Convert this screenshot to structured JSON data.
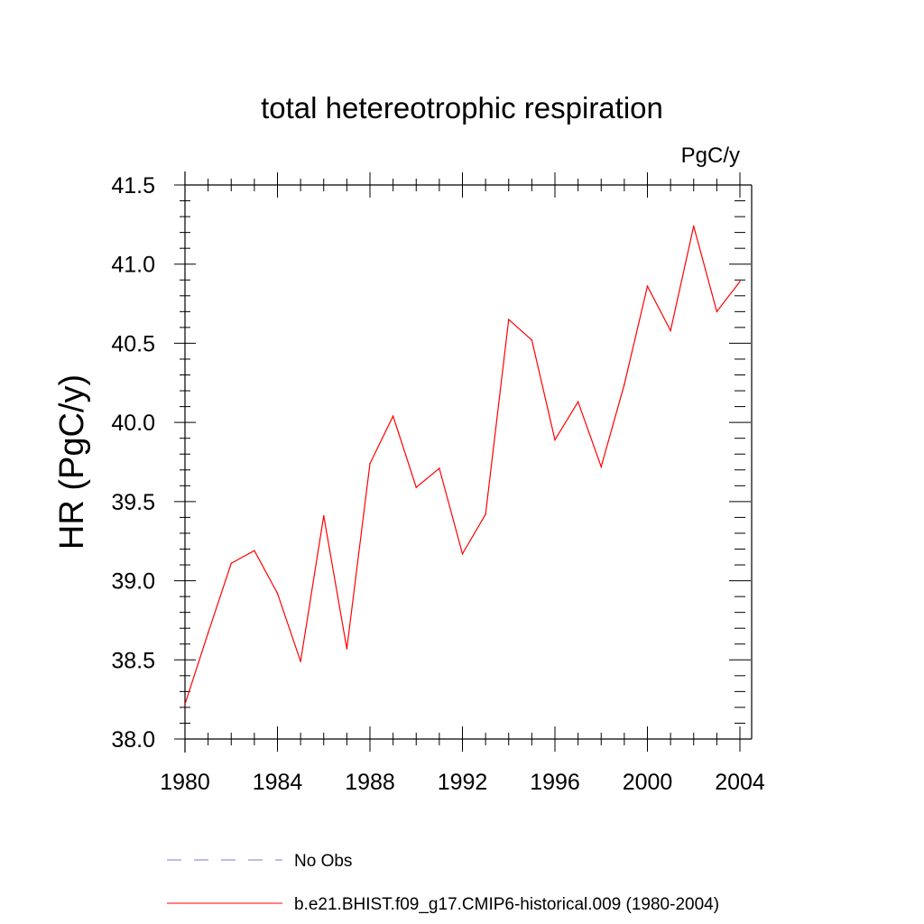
{
  "chart_data": {
    "type": "line",
    "title": "total hetereotrophic respiration",
    "units": "PgC/y",
    "ylabel": "HR  (PgC/y)",
    "xlabel": "",
    "xlim": [
      1980,
      2004
    ],
    "ylim": [
      38.0,
      41.5
    ],
    "x_ticks": [
      1980,
      1984,
      1988,
      1992,
      1996,
      2000,
      2004
    ],
    "x_tick_labels": [
      "1980",
      "1984",
      "1988",
      "1992",
      "1996",
      "2000",
      "2004"
    ],
    "y_ticks": [
      38.0,
      38.5,
      39.0,
      39.5,
      40.0,
      40.5,
      41.0,
      41.5
    ],
    "y_tick_labels": [
      "38.0",
      "38.5",
      "39.0",
      "39.5",
      "40.0",
      "40.5",
      "41.0",
      "41.5"
    ],
    "x_minor_step": 1,
    "y_minor_step": 0.1,
    "grid": false,
    "legend_position": "bottom",
    "series": [
      {
        "name": "b.e21.BHIST.f09_g17.CMIP6-historical.009 (1980-2004)",
        "color": "#ff0000",
        "style": "solid",
        "x": [
          1980,
          1981,
          1982,
          1983,
          1984,
          1985,
          1986,
          1987,
          1988,
          1989,
          1990,
          1991,
          1992,
          1993,
          1994,
          1995,
          1996,
          1997,
          1998,
          1999,
          2000,
          2001,
          2002,
          2003,
          2004
        ],
        "values": [
          38.22,
          38.67,
          39.11,
          39.19,
          38.92,
          38.49,
          39.41,
          38.57,
          39.74,
          40.04,
          39.59,
          39.71,
          39.17,
          39.42,
          40.65,
          40.52,
          39.89,
          40.13,
          39.72,
          40.24,
          40.86,
          40.58,
          41.24,
          40.7,
          40.89
        ]
      }
    ],
    "legend": [
      {
        "label": "No Obs",
        "color": "#7a7ad6",
        "style": "dashed"
      },
      {
        "label": "b.e21.BHIST.f09_g17.CMIP6-historical.009 (1980-2004)",
        "color": "#ff0000",
        "style": "solid"
      }
    ]
  }
}
